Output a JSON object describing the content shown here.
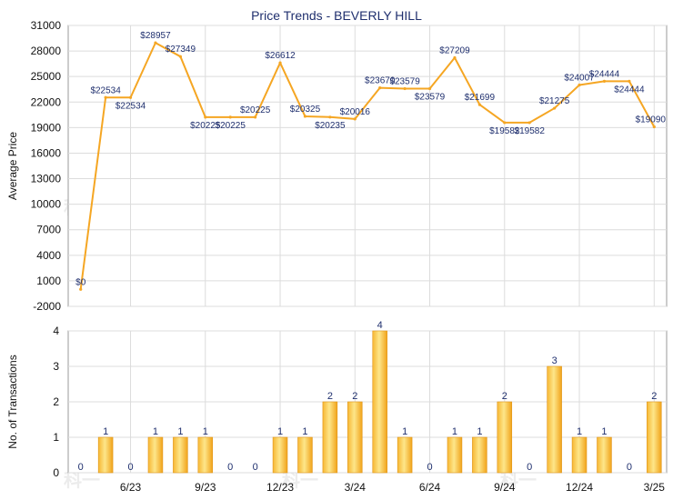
{
  "chart_data": [
    {
      "type": "line",
      "title": "Price Trends - BEVERLY HILL",
      "ylabel": "Average Price",
      "ylim": [
        -2000,
        31000
      ],
      "yticks": [
        -2000,
        1000,
        4000,
        7000,
        10000,
        13000,
        16000,
        19000,
        22000,
        25000,
        28000,
        31000
      ],
      "grid": true,
      "color": "#f5a623",
      "series": [
        {
          "values": [
            0,
            22534,
            22534,
            28957,
            27349,
            20225,
            20225,
            20225,
            26612,
            20325,
            20235,
            20016,
            23670,
            23579,
            23579,
            27209,
            21699,
            19582,
            19582,
            21275,
            24007,
            24444,
            24444,
            19090
          ],
          "labels": [
            "$0",
            "$22534",
            "$22534",
            "$28957",
            "$27349",
            "$20225",
            "$20225",
            "$20225",
            "$26612",
            "$20325",
            "$20235",
            "$20016",
            "$23670",
            "$23579",
            "$23579",
            "$27209",
            "$21699",
            "$19582",
            "$19582",
            "$21275",
            "$24007",
            "$24444",
            "$24444",
            "$19090"
          ]
        }
      ]
    },
    {
      "type": "bar",
      "ylabel": "No. of Transactions",
      "ylim": [
        0,
        4
      ],
      "yticks": [
        0,
        1,
        2,
        3,
        4
      ],
      "grid": true,
      "color": "#f5a623",
      "x_tick_labels": [
        {
          "index": 2,
          "label": "6/23"
        },
        {
          "index": 5,
          "label": "9/23"
        },
        {
          "index": 8,
          "label": "12/23"
        },
        {
          "index": 11,
          "label": "3/24"
        },
        {
          "index": 14,
          "label": "6/24"
        },
        {
          "index": 17,
          "label": "9/24"
        },
        {
          "index": 20,
          "label": "12/24"
        },
        {
          "index": 23,
          "label": "3/25"
        }
      ],
      "series": [
        {
          "values": [
            0,
            1,
            0,
            1,
            1,
            1,
            0,
            0,
            1,
            1,
            2,
            2,
            4,
            1,
            0,
            1,
            1,
            2,
            0,
            3,
            1,
            1,
            0,
            2
          ]
        }
      ]
    }
  ],
  "watermark": "科一"
}
